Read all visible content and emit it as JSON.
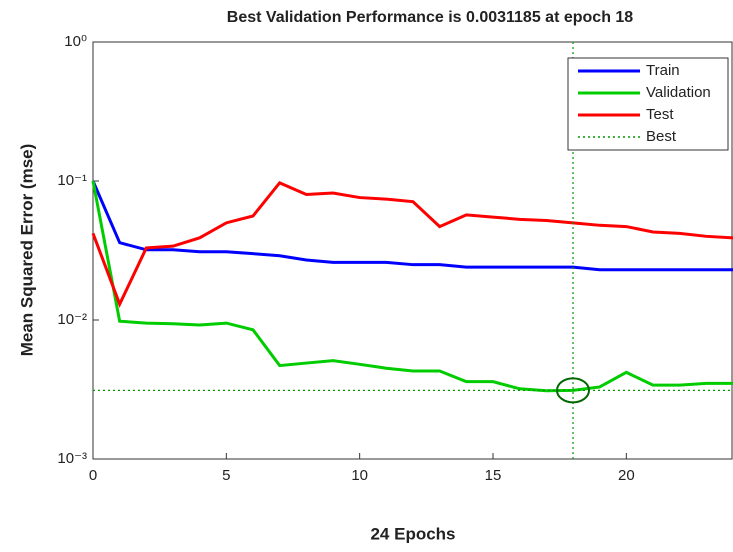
{
  "chart_data": {
    "type": "line",
    "title": "Best Validation Performance is 0.0031185 at epoch 18",
    "x_label": "24 Epochs",
    "y_label": "Mean Squared Error  (mse)",
    "log_y": true,
    "x": [
      0,
      1,
      2,
      3,
      4,
      5,
      6,
      7,
      8,
      9,
      10,
      11,
      12,
      13,
      14,
      15,
      16,
      17,
      18,
      19,
      20,
      21,
      22,
      23,
      24
    ],
    "series": [
      {
        "name": "Train",
        "color": "#0000ff",
        "values": [
          0.1,
          0.036,
          0.032,
          0.032,
          0.031,
          0.031,
          0.03,
          0.029,
          0.027,
          0.026,
          0.026,
          0.026,
          0.025,
          0.025,
          0.024,
          0.024,
          0.024,
          0.024,
          0.024,
          0.023,
          0.023,
          0.023,
          0.023,
          0.023,
          0.023
        ]
      },
      {
        "name": "Validation",
        "color": "#00cc00",
        "values": [
          0.1,
          0.0098,
          0.0095,
          0.0094,
          0.0092,
          0.0095,
          0.0085,
          0.0047,
          0.0049,
          0.0051,
          0.0048,
          0.0045,
          0.0043,
          0.0043,
          0.0036,
          0.0036,
          0.0032,
          0.0031,
          0.0031185,
          0.0033,
          0.0042,
          0.0034,
          0.0034,
          0.0035,
          0.0035
        ]
      },
      {
        "name": "Test",
        "color": "#ff0000",
        "values": [
          0.042,
          0.013,
          0.033,
          0.034,
          0.039,
          0.05,
          0.056,
          0.097,
          0.08,
          0.082,
          0.076,
          0.074,
          0.071,
          0.047,
          0.057,
          0.055,
          0.053,
          0.052,
          0.05,
          0.048,
          0.047,
          0.043,
          0.042,
          0.04,
          0.039
        ]
      }
    ],
    "best": {
      "name": "Best",
      "color": "#009900",
      "x": 18,
      "y": 0.0031185
    },
    "xlim": [
      0,
      24
    ],
    "xticks": [
      0,
      5,
      10,
      15,
      20
    ],
    "ylim": [
      0.001,
      1
    ],
    "yticks": [
      {
        "value": 1,
        "label": "10⁰"
      },
      {
        "value": 0.1,
        "label": "10⁻¹"
      },
      {
        "value": 0.01,
        "label": "10⁻²"
      },
      {
        "value": 0.001,
        "label": "10⁻³"
      }
    ],
    "legend": "top-right"
  }
}
